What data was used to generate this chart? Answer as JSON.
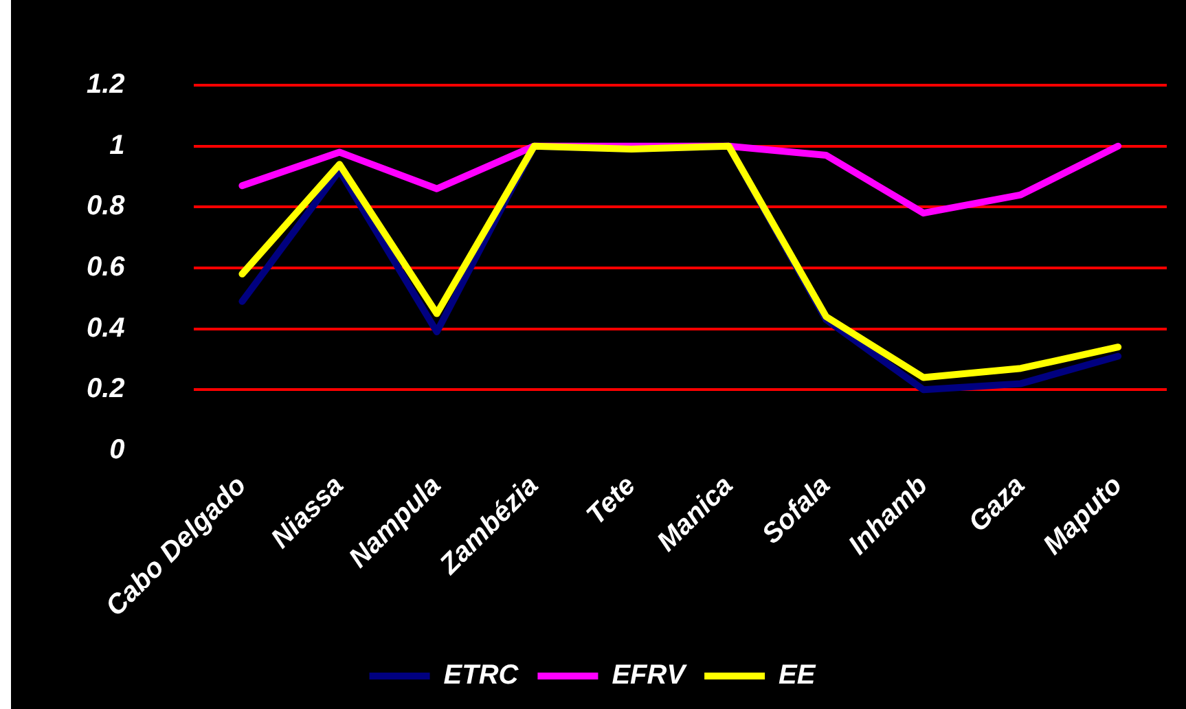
{
  "chart_data": {
    "type": "line",
    "categories": [
      "Cabo Delgado",
      "Niassa",
      "Nampula",
      "Zambézia",
      "Tete",
      "Manica",
      "Sofala",
      "Inhamb",
      "Gaza",
      "Maputo"
    ],
    "series": [
      {
        "name": "ETRC",
        "color": "#000080",
        "values": [
          0.49,
          0.92,
          0.39,
          1.0,
          0.99,
          1.0,
          0.43,
          0.2,
          0.22,
          0.31
        ]
      },
      {
        "name": "EFRV",
        "color": "#ff00ff",
        "values": [
          0.87,
          0.98,
          0.86,
          1.0,
          1.0,
          1.0,
          0.97,
          0.78,
          0.84,
          1.0
        ]
      },
      {
        "name": "EE",
        "color": "#ffff00",
        "values": [
          0.58,
          0.94,
          0.45,
          1.0,
          0.99,
          1.0,
          0.44,
          0.24,
          0.27,
          0.34
        ]
      }
    ],
    "ylim": [
      0,
      1.2
    ],
    "yticks": [
      0,
      0.2,
      0.4,
      0.6,
      0.8,
      1,
      1.2
    ],
    "grid": "y",
    "legend": "bottom",
    "marker": "none",
    "line_style": "solid"
  }
}
